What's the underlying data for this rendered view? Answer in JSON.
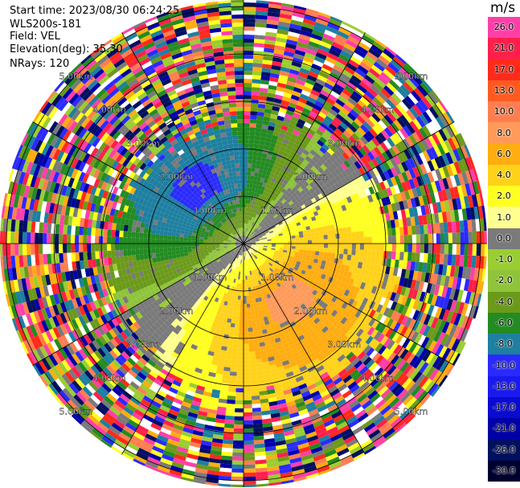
{
  "header": {
    "start_time": "Start time: 2023/08/30 06:24:25",
    "instrument": "WLS200s-181",
    "field": "Field: VEL",
    "elevation": "Elevation(deg): 35.30",
    "nrays": "NRays: 120"
  },
  "colorbar": {
    "unit": "m/s",
    "levels": [
      {
        "label": "26.0",
        "color": "#ff3fa8"
      },
      {
        "label": "21.0",
        "color": "#ff1f4a"
      },
      {
        "label": "17.0",
        "color": "#ff2a1a"
      },
      {
        "label": "13.0",
        "color": "#ff5a20"
      },
      {
        "label": "10.0",
        "color": "#ff7e50"
      },
      {
        "label": "8.0",
        "color": "#ff9a5a"
      },
      {
        "label": "6.0",
        "color": "#ffad10"
      },
      {
        "label": "4.0",
        "color": "#ffd21a"
      },
      {
        "label": "2.0",
        "color": "#ffff20"
      },
      {
        "label": "1.0",
        "color": "#ffff90"
      },
      {
        "label": "0.0",
        "color": "#7a7a7a"
      },
      {
        "label": "-1.0",
        "color": "#9acd32"
      },
      {
        "label": "-2.0",
        "color": "#8fc43a"
      },
      {
        "label": "-4.0",
        "color": "#6b9a1a"
      },
      {
        "label": "-6.0",
        "color": "#238b22"
      },
      {
        "label": "-8.0",
        "color": "#1e7fa0"
      },
      {
        "label": "-10.0",
        "color": "#2a2aff"
      },
      {
        "label": "-13.0",
        "color": "#1a1aee"
      },
      {
        "label": "-17.0",
        "color": "#0a0ad0"
      },
      {
        "label": "-21.0",
        "color": "#0000a8"
      },
      {
        "label": "-26.0",
        "color": "#001060"
      },
      {
        "label": "-30.0",
        "color": "#000030"
      }
    ]
  },
  "range_rings": [
    "1.00km",
    "2.00km",
    "3.00km",
    "4.00km",
    "5.00km"
  ],
  "noise_colors": [
    "#ff3fa8",
    "#ff1f4a",
    "#ff2a1a",
    "#ff7e50",
    "#ffad10",
    "#ffff20",
    "#9acd32",
    "#6b9a1a",
    "#238b22",
    "#1e7fa0",
    "#2a2aff",
    "#0000a8",
    "#001060",
    "#7a7a7a",
    "#ffffff"
  ]
}
